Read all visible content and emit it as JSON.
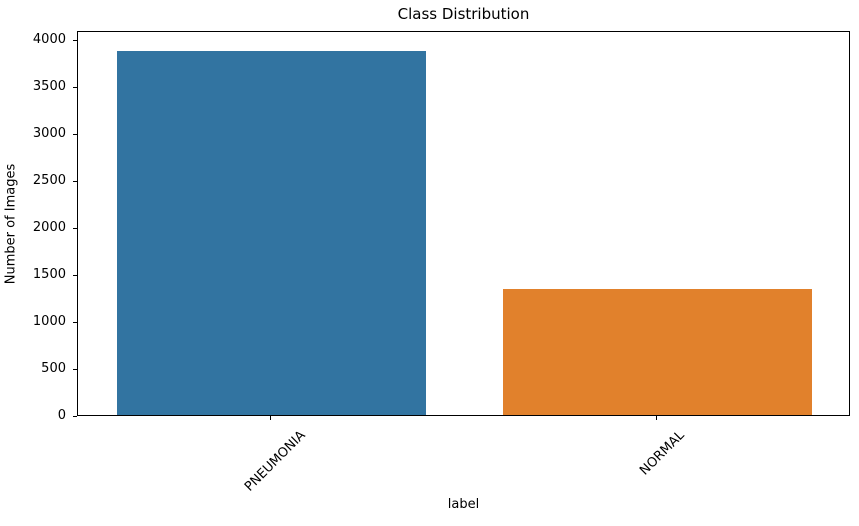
{
  "chart_data": {
    "type": "bar",
    "title": "Class Distribution",
    "xlabel": "label",
    "ylabel": "Number of Images",
    "categories": [
      "PNEUMONIA",
      "NORMAL"
    ],
    "values": [
      3875,
      1341
    ],
    "bar_colors": [
      "#3274a1",
      "#e1812c"
    ],
    "ylim": [
      0,
      4100
    ],
    "yticks": [
      0,
      500,
      1000,
      1500,
      2000,
      2500,
      3000,
      3500,
      4000
    ],
    "x_tick_rotation_deg": 45,
    "bar_width_fraction": 0.8,
    "grid": false,
    "legend_position": "none"
  }
}
